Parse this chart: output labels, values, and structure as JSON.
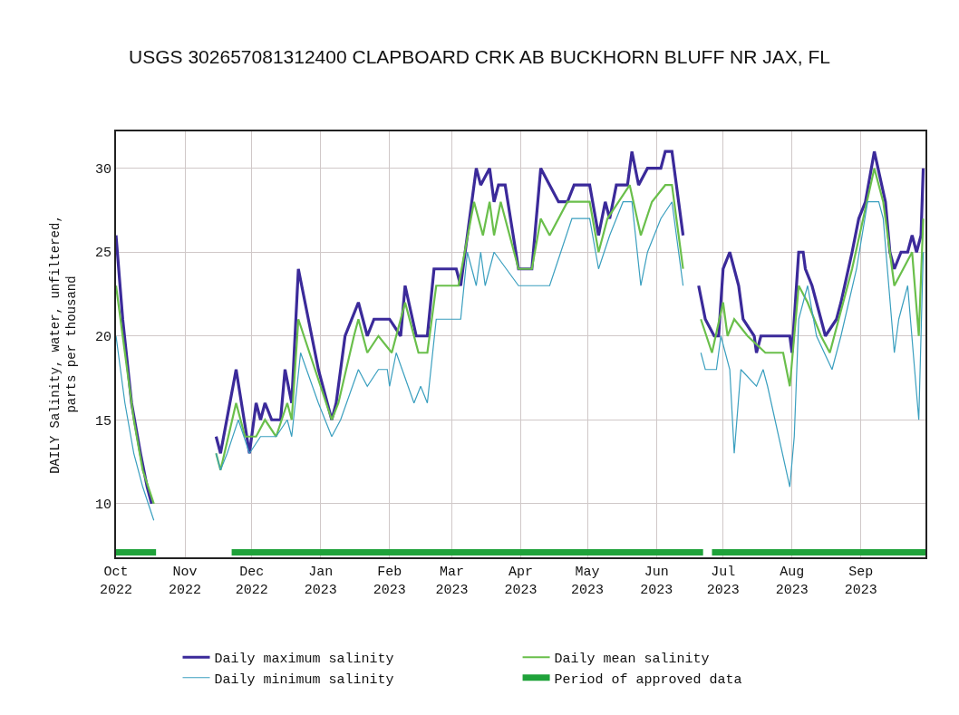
{
  "chart_data": {
    "type": "line",
    "title": "USGS 302657081312400 CLAPBOARD CRK AB BUCKHORN BLUFF NR JAX, FL",
    "ylabel": "DAILY Salinity, water, unfiltered,\nparts per thousand",
    "xlim": [
      "2022-10-01",
      "2023-09-30"
    ],
    "xticks": [
      {
        "value": "2022-10-01",
        "label": "Oct\n2022"
      },
      {
        "value": "2022-11-01",
        "label": "Nov\n2022"
      },
      {
        "value": "2022-12-01",
        "label": "Dec\n2022"
      },
      {
        "value": "2023-01-01",
        "label": "Jan\n2023"
      },
      {
        "value": "2023-02-01",
        "label": "Feb\n2023"
      },
      {
        "value": "2023-03-01",
        "label": "Mar\n2023"
      },
      {
        "value": "2023-04-01",
        "label": "Apr\n2023"
      },
      {
        "value": "2023-05-01",
        "label": "May\n2023"
      },
      {
        "value": "2023-06-01",
        "label": "Jun\n2023"
      },
      {
        "value": "2023-07-01",
        "label": "Jul\n2023"
      },
      {
        "value": "2023-08-01",
        "label": "Aug\n2023"
      },
      {
        "value": "2023-09-01",
        "label": "Sep\n2023"
      }
    ],
    "ylim": [
      6.8,
      32.2
    ],
    "yticks": [
      10,
      15,
      20,
      25,
      30
    ],
    "grid": true,
    "legend": "bottom",
    "series": [
      {
        "name": "Daily maximum salinity",
        "color": "#3b2a9a",
        "x": [
          "2022-10-01",
          "2022-10-04",
          "2022-10-08",
          "2022-10-12",
          "2022-10-15",
          "2022-10-17",
          "2022-10-18",
          "2022-11-15",
          "2022-11-17",
          "2022-11-24",
          "2022-11-30",
          "2022-12-03",
          "2022-12-05",
          "2022-12-07",
          "2022-12-10",
          "2022-12-14",
          "2022-12-16",
          "2022-12-19",
          "2022-12-22",
          "2022-12-31",
          "2023-01-06",
          "2023-01-08",
          "2023-01-12",
          "2023-01-18",
          "2023-01-22",
          "2023-01-25",
          "2023-01-31",
          "2023-02-01",
          "2023-02-06",
          "2023-02-08",
          "2023-02-13",
          "2023-02-18",
          "2023-02-21",
          "2023-03-03",
          "2023-03-05",
          "2023-03-12",
          "2023-03-14",
          "2023-03-18",
          "2023-03-20",
          "2023-03-22",
          "2023-03-25",
          "2023-03-31",
          "2023-04-06",
          "2023-04-10",
          "2023-04-14",
          "2023-04-18",
          "2023-04-22",
          "2023-04-25",
          "2023-05-02",
          "2023-05-06",
          "2023-05-09",
          "2023-05-11",
          "2023-05-14",
          "2023-05-19",
          "2023-05-21",
          "2023-05-24",
          "2023-05-28",
          "2023-06-03",
          "2023-06-05",
          "2023-06-08",
          "2023-06-10",
          "2023-06-13",
          "2023-06-14",
          "2023-06-20",
          "2023-06-23",
          "2023-06-27",
          "2023-06-29",
          "2023-07-01",
          "2023-07-04",
          "2023-07-08",
          "2023-07-10",
          "2023-07-15",
          "2023-07-16",
          "2023-07-18",
          "2023-07-31",
          "2023-08-01",
          "2023-08-04",
          "2023-08-06",
          "2023-08-07",
          "2023-08-10",
          "2023-08-14",
          "2023-08-16",
          "2023-08-21",
          "2023-08-23",
          "2023-08-28",
          "2023-08-31",
          "2023-09-03",
          "2023-09-07",
          "2023-09-12",
          "2023-09-14",
          "2023-09-16",
          "2023-09-19",
          "2023-09-22",
          "2023-09-24",
          "2023-09-26",
          "2023-09-28",
          "2023-09-29"
        ],
        "values": [
          26,
          21,
          16,
          13,
          11,
          10,
          null,
          14,
          13,
          18,
          13,
          16,
          15,
          16,
          15,
          15,
          18,
          16,
          24,
          18,
          15,
          16,
          20,
          22,
          20,
          21,
          21,
          21,
          20,
          23,
          20,
          20,
          24,
          24,
          23,
          30,
          29,
          30,
          28,
          29,
          29,
          24,
          24,
          30,
          29,
          28,
          28,
          29,
          29,
          26,
          28,
          27,
          29,
          29,
          31,
          29,
          30,
          30,
          31,
          31,
          29,
          26,
          null,
          23,
          21,
          20,
          20,
          24,
          25,
          23,
          21,
          20,
          19,
          20,
          20,
          19,
          25,
          25,
          24,
          23,
          21,
          20,
          21,
          22,
          25,
          27,
          28,
          31,
          28,
          25,
          24,
          25,
          25,
          26,
          25,
          26,
          30
        ]
      },
      {
        "name": "Daily mean salinity",
        "color": "#6abf4b",
        "x": [
          "2022-10-01",
          "2022-10-05",
          "2022-10-09",
          "2022-10-13",
          "2022-10-18",
          "2022-10-19",
          "2022-11-15",
          "2022-11-17",
          "2022-11-24",
          "2022-11-28",
          "2022-12-03",
          "2022-12-07",
          "2022-12-12",
          "2022-12-17",
          "2022-12-19",
          "2022-12-22",
          "2022-12-27",
          "2023-01-01",
          "2023-01-06",
          "2023-01-09",
          "2023-01-16",
          "2023-01-18",
          "2023-01-22",
          "2023-01-27",
          "2023-02-02",
          "2023-02-08",
          "2023-02-14",
          "2023-02-18",
          "2023-02-22",
          "2023-03-04",
          "2023-03-11",
          "2023-03-15",
          "2023-03-18",
          "2023-03-20",
          "2023-03-23",
          "2023-03-31",
          "2023-04-06",
          "2023-04-10",
          "2023-04-14",
          "2023-04-22",
          "2023-05-02",
          "2023-05-06",
          "2023-05-10",
          "2023-05-20",
          "2023-05-25",
          "2023-05-30",
          "2023-06-05",
          "2023-06-08",
          "2023-06-13",
          "2023-06-14",
          "2023-06-21",
          "2023-06-26",
          "2023-07-01",
          "2023-07-03",
          "2023-07-06",
          "2023-07-12",
          "2023-07-20",
          "2023-07-28",
          "2023-07-31",
          "2023-08-04",
          "2023-08-08",
          "2023-08-14",
          "2023-08-18",
          "2023-08-22",
          "2023-08-28",
          "2023-09-02",
          "2023-09-07",
          "2023-09-11",
          "2023-09-16",
          "2023-09-20",
          "2023-09-24",
          "2023-09-27",
          "2023-09-29"
        ],
        "values": [
          23,
          19,
          15,
          12,
          10,
          null,
          13,
          12,
          16,
          14,
          14,
          15,
          14,
          16,
          15,
          21,
          19,
          17,
          15,
          16,
          20,
          21,
          19,
          20,
          19,
          22,
          19,
          19,
          23,
          23,
          28,
          26,
          28,
          26,
          28,
          24,
          24,
          27,
          26,
          28,
          28,
          25,
          27,
          29,
          26,
          28,
          29,
          29,
          24,
          null,
          21,
          19,
          22,
          20,
          21,
          20,
          19,
          19,
          17,
          23,
          22,
          20,
          19,
          21,
          24,
          27,
          30,
          28,
          23,
          24,
          25,
          20,
          27
        ]
      },
      {
        "name": "Daily minimum salinity",
        "color": "#3a9fbf",
        "x": [
          "2022-10-01",
          "2022-10-05",
          "2022-10-09",
          "2022-10-13",
          "2022-10-18",
          "2022-10-19",
          "2022-11-15",
          "2022-11-17",
          "2022-11-20",
          "2022-11-25",
          "2022-11-30",
          "2022-12-05",
          "2022-12-12",
          "2022-12-17",
          "2022-12-19",
          "2022-12-23",
          "2022-12-31",
          "2023-01-06",
          "2023-01-10",
          "2023-01-18",
          "2023-01-22",
          "2023-01-27",
          "2023-01-31",
          "2023-02-01",
          "2023-02-04",
          "2023-02-12",
          "2023-02-15",
          "2023-02-18",
          "2023-02-22",
          "2023-03-05",
          "2023-03-08",
          "2023-03-12",
          "2023-03-14",
          "2023-03-16",
          "2023-03-20",
          "2023-03-31",
          "2023-04-14",
          "2023-04-19",
          "2023-04-24",
          "2023-05-02",
          "2023-05-06",
          "2023-05-11",
          "2023-05-17",
          "2023-05-21",
          "2023-05-25",
          "2023-05-28",
          "2023-06-03",
          "2023-06-08",
          "2023-06-13",
          "2023-06-14",
          "2023-06-21",
          "2023-06-23",
          "2023-06-28",
          "2023-06-30",
          "2023-07-04",
          "2023-07-06",
          "2023-07-09",
          "2023-07-16",
          "2023-07-19",
          "2023-07-21",
          "2023-07-31",
          "2023-08-02",
          "2023-08-04",
          "2023-08-08",
          "2023-08-12",
          "2023-08-19",
          "2023-08-23",
          "2023-08-30",
          "2023-09-04",
          "2023-09-09",
          "2023-09-11",
          "2023-09-16",
          "2023-09-18",
          "2023-09-22",
          "2023-09-27",
          "2023-09-28",
          "2023-09-29"
        ],
        "values": [
          20,
          16,
          13,
          11,
          9,
          null,
          13,
          12,
          13,
          15,
          13,
          14,
          14,
          15,
          14,
          19,
          16,
          14,
          15,
          18,
          17,
          18,
          18,
          17,
          19,
          16,
          17,
          16,
          21,
          21,
          25,
          23,
          25,
          23,
          25,
          23,
          23,
          25,
          27,
          27,
          24,
          26,
          28,
          28,
          23,
          25,
          27,
          28,
          23,
          null,
          19,
          18,
          18,
          20,
          18,
          13,
          18,
          17,
          18,
          17,
          11,
          14,
          21,
          23,
          20,
          18,
          20,
          24,
          28,
          28,
          27,
          19,
          21,
          23,
          15,
          20,
          25
        ]
      },
      {
        "name": "Period of approved data",
        "color": "#1fa23a",
        "x": [
          "2022-10-01",
          "2022-10-19",
          "2022-10-20",
          "2022-11-22",
          "2023-06-22",
          "2023-06-23",
          "2023-06-26",
          "2023-09-30"
        ],
        "values": [
          7.1,
          7.1,
          null,
          7.1,
          7.1,
          null,
          7.1,
          7.1
        ]
      }
    ]
  }
}
